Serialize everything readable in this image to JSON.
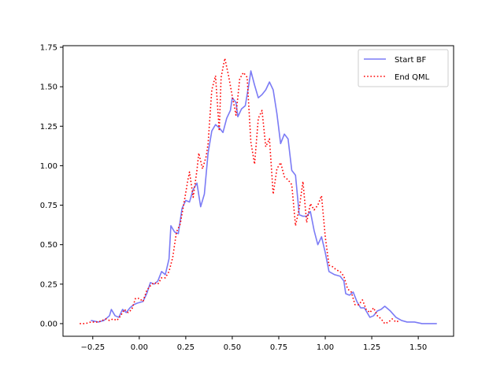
{
  "chart_data": {
    "type": "line",
    "title": "",
    "xlabel": "",
    "ylabel": "",
    "xlim": [
      -0.41,
      1.69
    ],
    "ylim": [
      -0.08,
      1.76
    ],
    "xticks": [
      -0.25,
      0.0,
      0.25,
      0.5,
      0.75,
      1.0,
      1.25,
      1.5
    ],
    "xtick_labels": [
      "−0.25",
      "0.00",
      "0.25",
      "0.50",
      "0.75",
      "1.00",
      "1.25",
      "1.50"
    ],
    "yticks": [
      0.0,
      0.25,
      0.5,
      0.75,
      1.0,
      1.25,
      1.5,
      1.75
    ],
    "ytick_labels": [
      "0.00",
      "0.25",
      "0.50",
      "0.75",
      "1.00",
      "1.25",
      "1.50",
      "1.75"
    ],
    "grid": false,
    "legend": "top-right",
    "series": [
      {
        "name": "Start BF",
        "color": "#7b7bf5",
        "style": "solid",
        "points": [
          [
            -0.26,
            0.02
          ],
          [
            -0.22,
            0.01
          ],
          [
            -0.19,
            0.02
          ],
          [
            -0.16,
            0.05
          ],
          [
            -0.15,
            0.09
          ],
          [
            -0.13,
            0.05
          ],
          [
            -0.11,
            0.04
          ],
          [
            -0.09,
            0.09
          ],
          [
            -0.07,
            0.07
          ],
          [
            -0.05,
            0.1
          ],
          [
            -0.03,
            0.12
          ],
          [
            -0.01,
            0.13
          ],
          [
            0.02,
            0.14
          ],
          [
            0.04,
            0.19
          ],
          [
            0.06,
            0.26
          ],
          [
            0.08,
            0.25
          ],
          [
            0.1,
            0.27
          ],
          [
            0.12,
            0.33
          ],
          [
            0.14,
            0.31
          ],
          [
            0.16,
            0.41
          ],
          [
            0.17,
            0.62
          ],
          [
            0.19,
            0.58
          ],
          [
            0.21,
            0.57
          ],
          [
            0.23,
            0.73
          ],
          [
            0.25,
            0.78
          ],
          [
            0.27,
            0.77
          ],
          [
            0.29,
            0.85
          ],
          [
            0.31,
            0.89
          ],
          [
            0.33,
            0.74
          ],
          [
            0.35,
            0.82
          ],
          [
            0.37,
            1.08
          ],
          [
            0.39,
            1.22
          ],
          [
            0.41,
            1.26
          ],
          [
            0.43,
            1.24
          ],
          [
            0.45,
            1.21
          ],
          [
            0.47,
            1.3
          ],
          [
            0.49,
            1.35
          ],
          [
            0.5,
            1.43
          ],
          [
            0.52,
            1.4
          ],
          [
            0.53,
            1.31
          ],
          [
            0.55,
            1.36
          ],
          [
            0.57,
            1.38
          ],
          [
            0.59,
            1.52
          ],
          [
            0.6,
            1.6
          ],
          [
            0.62,
            1.51
          ],
          [
            0.64,
            1.43
          ],
          [
            0.66,
            1.45
          ],
          [
            0.68,
            1.48
          ],
          [
            0.7,
            1.53
          ],
          [
            0.72,
            1.48
          ],
          [
            0.74,
            1.33
          ],
          [
            0.76,
            1.14
          ],
          [
            0.78,
            1.2
          ],
          [
            0.8,
            1.17
          ],
          [
            0.82,
            0.97
          ],
          [
            0.84,
            0.94
          ],
          [
            0.86,
            0.69
          ],
          [
            0.88,
            0.68
          ],
          [
            0.9,
            0.68
          ],
          [
            0.92,
            0.71
          ],
          [
            0.94,
            0.59
          ],
          [
            0.96,
            0.5
          ],
          [
            0.98,
            0.55
          ],
          [
            1.0,
            0.45
          ],
          [
            1.02,
            0.33
          ],
          [
            1.05,
            0.31
          ],
          [
            1.08,
            0.3
          ],
          [
            1.1,
            0.27
          ],
          [
            1.11,
            0.19
          ],
          [
            1.13,
            0.18
          ],
          [
            1.15,
            0.2
          ],
          [
            1.17,
            0.14
          ],
          [
            1.19,
            0.1
          ],
          [
            1.21,
            0.1
          ],
          [
            1.24,
            0.04
          ],
          [
            1.26,
            0.05
          ],
          [
            1.28,
            0.08
          ],
          [
            1.3,
            0.09
          ],
          [
            1.32,
            0.11
          ],
          [
            1.35,
            0.08
          ],
          [
            1.38,
            0.04
          ],
          [
            1.41,
            0.02
          ],
          [
            1.44,
            0.01
          ],
          [
            1.48,
            0.01
          ],
          [
            1.52,
            0.0
          ],
          [
            1.56,
            0.0
          ],
          [
            1.6,
            0.0
          ]
        ]
      },
      {
        "name": "End QML",
        "color": "#ff0000",
        "style": "dotted",
        "points": [
          [
            -0.32,
            0.0
          ],
          [
            -0.29,
            0.0
          ],
          [
            -0.26,
            0.01
          ],
          [
            -0.24,
            0.01
          ],
          [
            -0.22,
            0.01
          ],
          [
            -0.2,
            0.02
          ],
          [
            -0.18,
            0.03
          ],
          [
            -0.16,
            0.02
          ],
          [
            -0.14,
            0.03
          ],
          [
            -0.12,
            0.02
          ],
          [
            -0.1,
            0.05
          ],
          [
            -0.08,
            0.09
          ],
          [
            -0.06,
            0.07
          ],
          [
            -0.04,
            0.09
          ],
          [
            -0.02,
            0.16
          ],
          [
            0.0,
            0.16
          ],
          [
            0.02,
            0.14
          ],
          [
            0.04,
            0.21
          ],
          [
            0.06,
            0.24
          ],
          [
            0.08,
            0.26
          ],
          [
            0.1,
            0.25
          ],
          [
            0.12,
            0.29
          ],
          [
            0.14,
            0.29
          ],
          [
            0.16,
            0.33
          ],
          [
            0.18,
            0.42
          ],
          [
            0.2,
            0.58
          ],
          [
            0.22,
            0.63
          ],
          [
            0.24,
            0.76
          ],
          [
            0.26,
            0.9
          ],
          [
            0.27,
            0.96
          ],
          [
            0.29,
            0.8
          ],
          [
            0.31,
            0.97
          ],
          [
            0.32,
            1.08
          ],
          [
            0.34,
            0.98
          ],
          [
            0.36,
            1.06
          ],
          [
            0.37,
            1.14
          ],
          [
            0.39,
            1.48
          ],
          [
            0.41,
            1.57
          ],
          [
            0.43,
            1.22
          ],
          [
            0.44,
            1.56
          ],
          [
            0.46,
            1.68
          ],
          [
            0.48,
            1.57
          ],
          [
            0.5,
            1.44
          ],
          [
            0.52,
            1.32
          ],
          [
            0.54,
            1.55
          ],
          [
            0.56,
            1.59
          ],
          [
            0.58,
            1.56
          ],
          [
            0.6,
            1.15
          ],
          [
            0.62,
            1.01
          ],
          [
            0.64,
            1.3
          ],
          [
            0.66,
            1.35
          ],
          [
            0.68,
            1.12
          ],
          [
            0.7,
            1.17
          ],
          [
            0.72,
            0.82
          ],
          [
            0.74,
            0.98
          ],
          [
            0.76,
            1.02
          ],
          [
            0.78,
            0.93
          ],
          [
            0.8,
            0.91
          ],
          [
            0.82,
            0.88
          ],
          [
            0.84,
            0.62
          ],
          [
            0.86,
            0.73
          ],
          [
            0.88,
            0.9
          ],
          [
            0.9,
            0.64
          ],
          [
            0.92,
            0.76
          ],
          [
            0.94,
            0.72
          ],
          [
            0.96,
            0.75
          ],
          [
            0.98,
            0.81
          ],
          [
            1.0,
            0.55
          ],
          [
            1.02,
            0.37
          ],
          [
            1.04,
            0.36
          ],
          [
            1.06,
            0.34
          ],
          [
            1.08,
            0.33
          ],
          [
            1.1,
            0.3
          ],
          [
            1.12,
            0.22
          ],
          [
            1.14,
            0.2
          ],
          [
            1.16,
            0.12
          ],
          [
            1.18,
            0.12
          ],
          [
            1.2,
            0.15
          ],
          [
            1.22,
            0.09
          ],
          [
            1.24,
            0.07
          ],
          [
            1.26,
            0.1
          ],
          [
            1.28,
            0.05
          ],
          [
            1.3,
            0.03
          ],
          [
            1.32,
            0.0
          ],
          [
            1.34,
            0.01
          ],
          [
            1.36,
            0.03
          ],
          [
            1.38,
            0.01
          ],
          [
            1.4,
            0.02
          ]
        ]
      }
    ]
  }
}
